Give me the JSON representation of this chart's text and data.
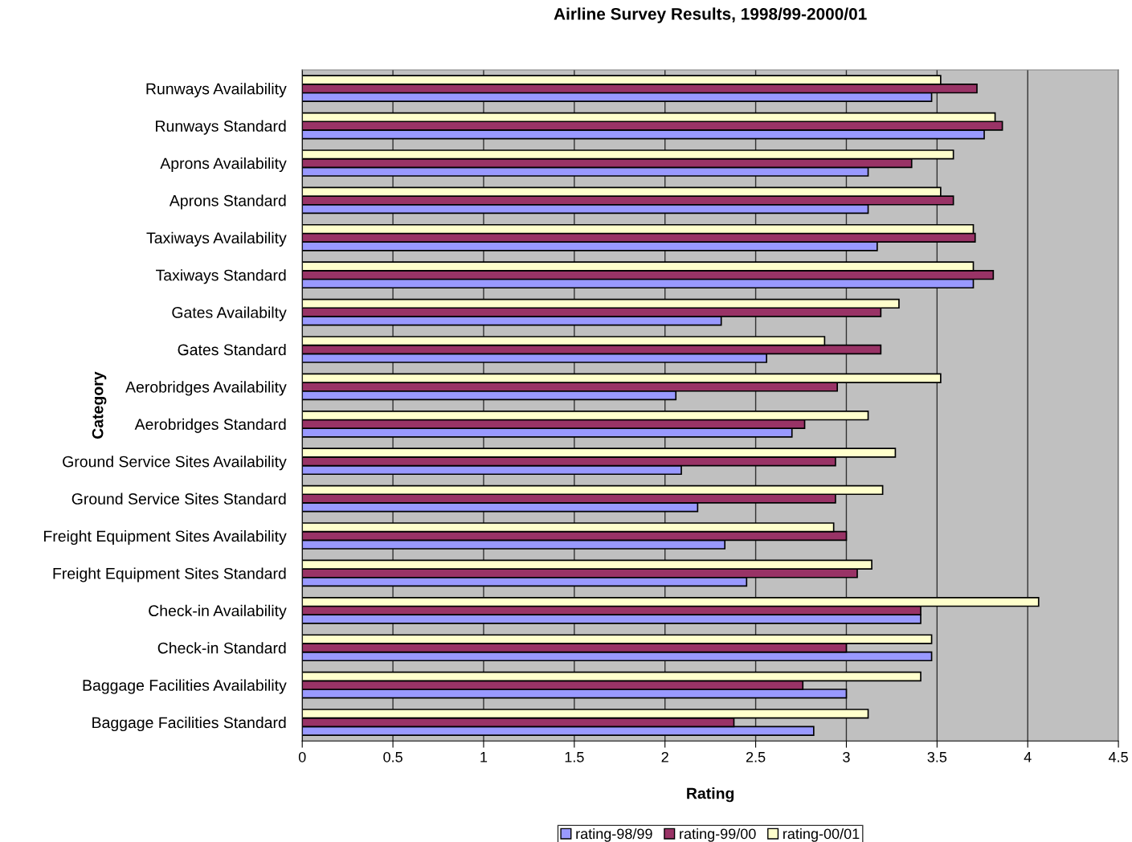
{
  "chart_data": {
    "type": "bar",
    "orientation": "horizontal",
    "title": "Airline Survey Results, 1998/99-2000/01",
    "xlabel": "Rating",
    "ylabel": "Category",
    "categories": [
      "Runways Availability",
      "Runways Standard",
      "Aprons Availability",
      "Aprons Standard",
      "Taxiways Availability",
      "Taxiways Standard",
      "Gates Availabilty",
      "Gates Standard",
      "Aerobridges Availability",
      "Aerobridges Standard",
      "Ground Service Sites Availability",
      "Ground Service Sites Standard",
      "Freight Equipment Sites Availability",
      "Freight Equipment Sites Standard",
      "Check-in Availability",
      "Check-in Standard",
      "Baggage Facilities Availability",
      "Baggage Facilities Standard"
    ],
    "series": [
      {
        "name": "rating-98/99",
        "color": "#9999ff",
        "values": [
          3.47,
          3.76,
          3.12,
          3.12,
          3.17,
          3.7,
          2.31,
          2.56,
          2.06,
          2.7,
          2.09,
          2.18,
          2.33,
          2.45,
          3.41,
          3.47,
          3.0,
          2.82
        ]
      },
      {
        "name": "rating-99/00",
        "color": "#993366",
        "values": [
          3.72,
          3.86,
          3.36,
          3.59,
          3.71,
          3.81,
          3.19,
          3.19,
          2.95,
          2.77,
          2.94,
          2.94,
          3.0,
          3.06,
          3.41,
          3.0,
          2.76,
          2.38
        ]
      },
      {
        "name": "rating-00/01",
        "color": "#ffffcc",
        "values": [
          3.52,
          3.82,
          3.59,
          3.52,
          3.7,
          3.7,
          3.29,
          2.88,
          3.52,
          3.12,
          3.27,
          3.2,
          2.93,
          3.14,
          4.06,
          3.47,
          3.41,
          3.12
        ]
      }
    ],
    "xlim": [
      0,
      4.5
    ],
    "xticks": [
      0,
      0.5,
      1,
      1.5,
      2,
      2.5,
      3,
      3.5,
      4,
      4.5
    ],
    "grid": "x",
    "legend": "bottom"
  }
}
